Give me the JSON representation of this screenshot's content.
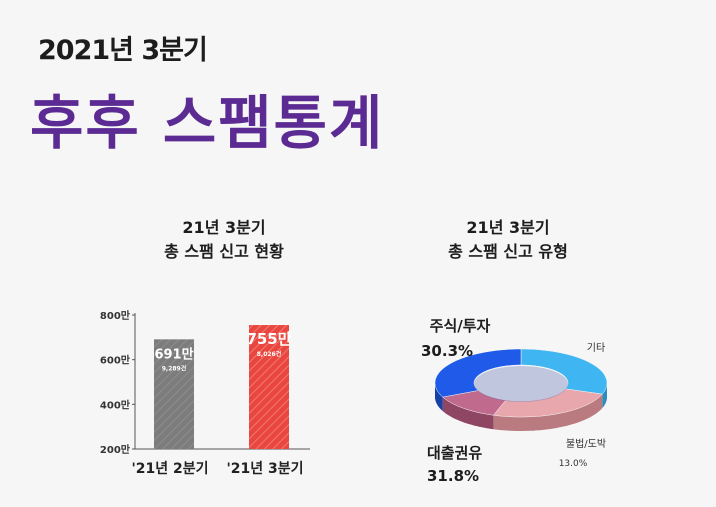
{
  "header": {
    "subtitle": "2021년 3분기",
    "title": "후후 스팸통계"
  },
  "colors": {
    "title_purple": "#5b2b93",
    "bar_gray": "#7c7c7c",
    "bar_red": "#e8463f",
    "pie_cyan": "#3fb6f2",
    "pie_blue": "#1f5ae8",
    "pie_mauve": "#c06a8d",
    "pie_pink": "#e7a7ac"
  },
  "chart_data": [
    {
      "type": "bar",
      "title_line1": "21년 3분기",
      "title_line2": "총 스팸 신고 현황",
      "categories": [
        "'21년 2분기",
        "'21년 3분기"
      ],
      "values": [
        691,
        755
      ],
      "value_labels": [
        "691만",
        "755만"
      ],
      "sub_labels": [
        "9,289건",
        "8,026건"
      ],
      "y_ticks": [
        800,
        600,
        400,
        200
      ],
      "y_tick_labels": [
        "800만",
        "600만",
        "400만",
        "200만"
      ],
      "ylim": [
        200,
        800
      ]
    },
    {
      "type": "pie",
      "title_line1": "21년 3분기",
      "title_line2": "총 스팸 신고 유형",
      "slices": [
        {
          "name": "주식/투자",
          "value": 30.3,
          "label": "30.3%"
        },
        {
          "name": "기타",
          "value": 24.9,
          "label": ""
        },
        {
          "name": "불법/도박",
          "value": 13.0,
          "label": "13.0%"
        },
        {
          "name": "대출권유",
          "value": 31.8,
          "label": "31.8%"
        }
      ]
    }
  ]
}
